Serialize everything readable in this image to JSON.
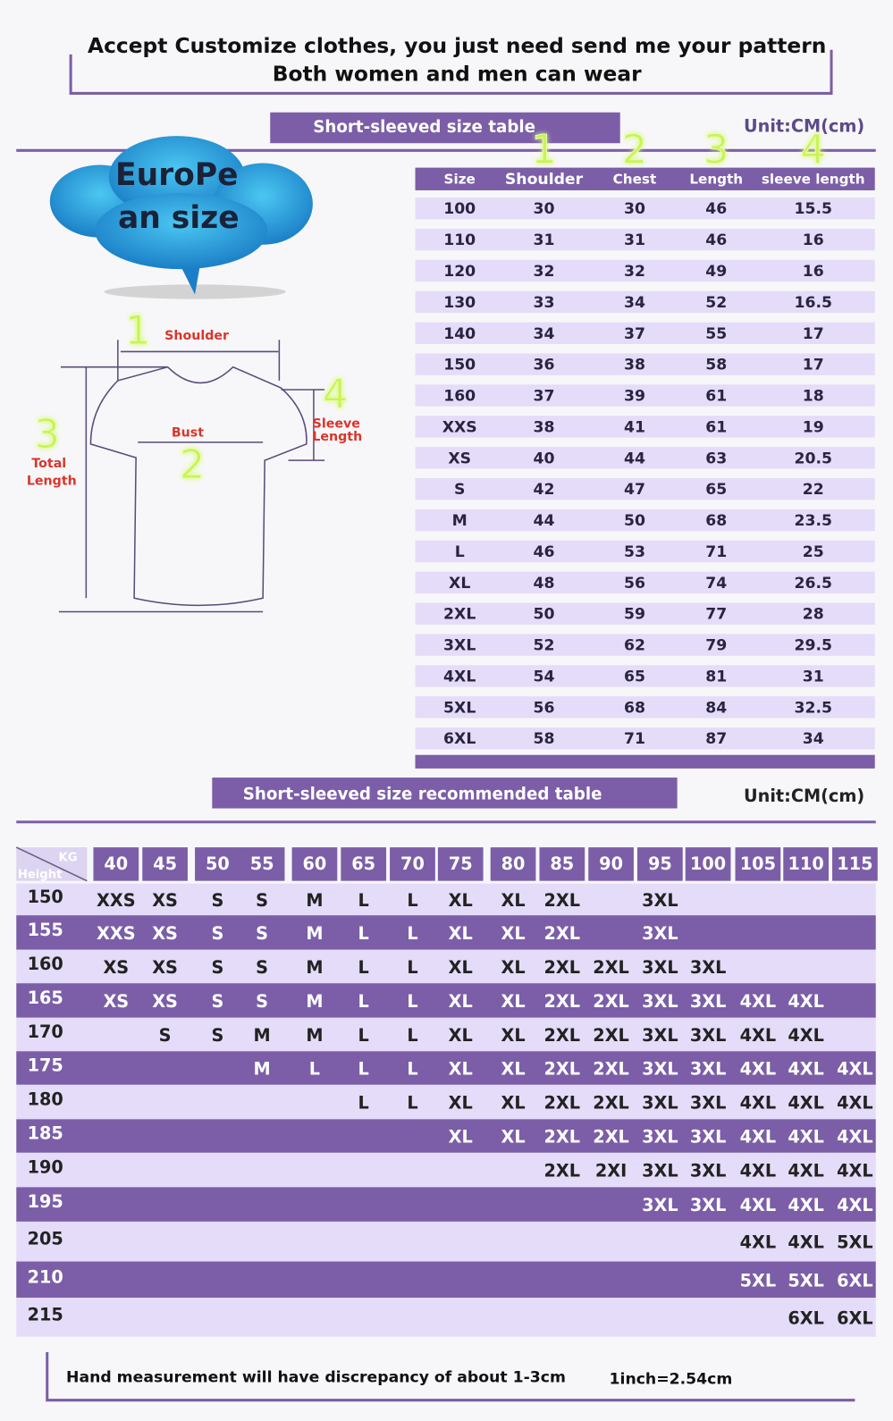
{
  "header": {
    "line1": "Accept Customize clothes, you just need send me your pattern",
    "line2": "Both women and men can wear"
  },
  "size_table": {
    "title": "Short-sleeved size  table",
    "unit": "Unit:CM(cm)",
    "badge_line1": "EuroPe",
    "badge_line2": "an  size",
    "numbers": [
      "1",
      "2",
      "3",
      "4"
    ],
    "columns": [
      "Size",
      "Shoulder",
      "Chest",
      "Length",
      "sleeve length"
    ],
    "rows": [
      [
        "100",
        30,
        30,
        46,
        15.5
      ],
      [
        "110",
        31,
        31,
        46,
        16
      ],
      [
        "120",
        32,
        32,
        49,
        16
      ],
      [
        "130",
        33,
        34,
        52,
        16.5
      ],
      [
        "140",
        34,
        37,
        55,
        17
      ],
      [
        "150",
        36,
        38,
        58,
        17
      ],
      [
        "160",
        37,
        39,
        61,
        18
      ],
      [
        "XXS",
        38,
        41,
        61,
        19
      ],
      [
        "XS",
        40,
        44,
        63,
        20.5
      ],
      [
        "S",
        42,
        47,
        65,
        22
      ],
      [
        "M",
        44,
        50,
        68,
        23.5
      ],
      [
        "L",
        46,
        53,
        71,
        25
      ],
      [
        "XL",
        48,
        56,
        74,
        26.5
      ],
      [
        "2XL",
        50,
        59,
        77,
        28
      ],
      [
        "3XL",
        52,
        62,
        79,
        29.5
      ],
      [
        "4XL",
        54,
        65,
        81,
        31
      ],
      [
        "5XL",
        56,
        68,
        84,
        32.5
      ],
      [
        "6XL",
        58,
        71,
        87,
        34
      ]
    ]
  },
  "diagram": {
    "shoulder_number": "1",
    "shoulder": "Shoulder",
    "bust_number": "2",
    "bust": "Bust",
    "total_number": "3",
    "total_line1": "Total",
    "total_line2": "Length",
    "sleeve_number": "4",
    "sleeve_line1": "Sleeve",
    "sleeve_line2": "Length"
  },
  "rec_table": {
    "title": "Short-sleeved size recommended table",
    "unit": "Unit:CM(cm)",
    "corner_weight": "KG",
    "corner_height": "Height",
    "weights": [
      40,
      45,
      50,
      55,
      60,
      65,
      70,
      75,
      80,
      85,
      90,
      95,
      100,
      105,
      110,
      115
    ],
    "rows": [
      {
        "height": 150,
        "sizes": [
          "XXS",
          "XS",
          "S",
          "S",
          "M",
          "L",
          "L",
          "XL",
          "XL",
          "2XL",
          null,
          "3XL",
          null,
          null,
          null,
          null
        ]
      },
      {
        "height": 155,
        "sizes": [
          "XXS",
          "XS",
          "S",
          "S",
          "M",
          "L",
          "L",
          "XL",
          "XL",
          "2XL",
          null,
          "3XL",
          null,
          null,
          null,
          null
        ]
      },
      {
        "height": 160,
        "sizes": [
          "XS",
          "XS",
          "S",
          "S",
          "M",
          "L",
          "L",
          "XL",
          "XL",
          "2XL",
          "2XL",
          "3XL",
          "3XL",
          null,
          null,
          null
        ]
      },
      {
        "height": 165,
        "sizes": [
          "XS",
          "XS",
          "S",
          "S",
          "M",
          "L",
          "L",
          "XL",
          "XL",
          "2XL",
          "2XL",
          "3XL",
          "3XL",
          "4XL",
          "4XL",
          null
        ]
      },
      {
        "height": 170,
        "sizes": [
          null,
          "S",
          "S",
          "M",
          "M",
          "L",
          "L",
          "XL",
          "XL",
          "2XL",
          "2XL",
          "3XL",
          "3XL",
          "4XL",
          "4XL",
          null
        ]
      },
      {
        "height": 175,
        "sizes": [
          null,
          null,
          null,
          "M",
          "L",
          "L",
          "L",
          "XL",
          "XL",
          "2XL",
          "2XL",
          "3XL",
          "3XL",
          "4XL",
          "4XL",
          "4XL"
        ]
      },
      {
        "height": 180,
        "sizes": [
          null,
          null,
          null,
          null,
          null,
          "L",
          "L",
          "XL",
          "XL",
          "2XL",
          "2XL",
          "3XL",
          "3XL",
          "4XL",
          "4XL",
          "4XL"
        ]
      },
      {
        "height": 185,
        "sizes": [
          null,
          null,
          null,
          null,
          null,
          null,
          null,
          "XL",
          "XL",
          "2XL",
          "2XL",
          "3XL",
          "3XL",
          "4XL",
          "4XL",
          "4XL"
        ]
      },
      {
        "height": 190,
        "sizes": [
          null,
          null,
          null,
          null,
          null,
          null,
          null,
          null,
          null,
          "2XL",
          "2XI",
          "3XL",
          "3XL",
          "4XL",
          "4XL",
          "4XL"
        ]
      },
      {
        "height": 195,
        "sizes": [
          null,
          null,
          null,
          null,
          null,
          null,
          null,
          null,
          null,
          null,
          null,
          "3XL",
          "3XL",
          "4XL",
          "4XL",
          "4XL"
        ]
      },
      {
        "height": 205,
        "sizes": [
          null,
          null,
          null,
          null,
          null,
          null,
          null,
          null,
          null,
          null,
          null,
          null,
          null,
          "4XL",
          "4XL",
          "5XL"
        ]
      },
      {
        "height": 210,
        "sizes": [
          null,
          null,
          null,
          null,
          null,
          null,
          null,
          null,
          null,
          null,
          null,
          null,
          null,
          "5XL",
          "5XL",
          "6XL"
        ]
      },
      {
        "height": 215,
        "sizes": [
          null,
          null,
          null,
          null,
          null,
          null,
          null,
          null,
          null,
          null,
          null,
          null,
          null,
          null,
          "6XL",
          "6XL"
        ]
      }
    ]
  },
  "footer": {
    "note": "Hand measurement will have discrepancy of about  1-3cm",
    "conversion": "1inch=2.54cm"
  }
}
